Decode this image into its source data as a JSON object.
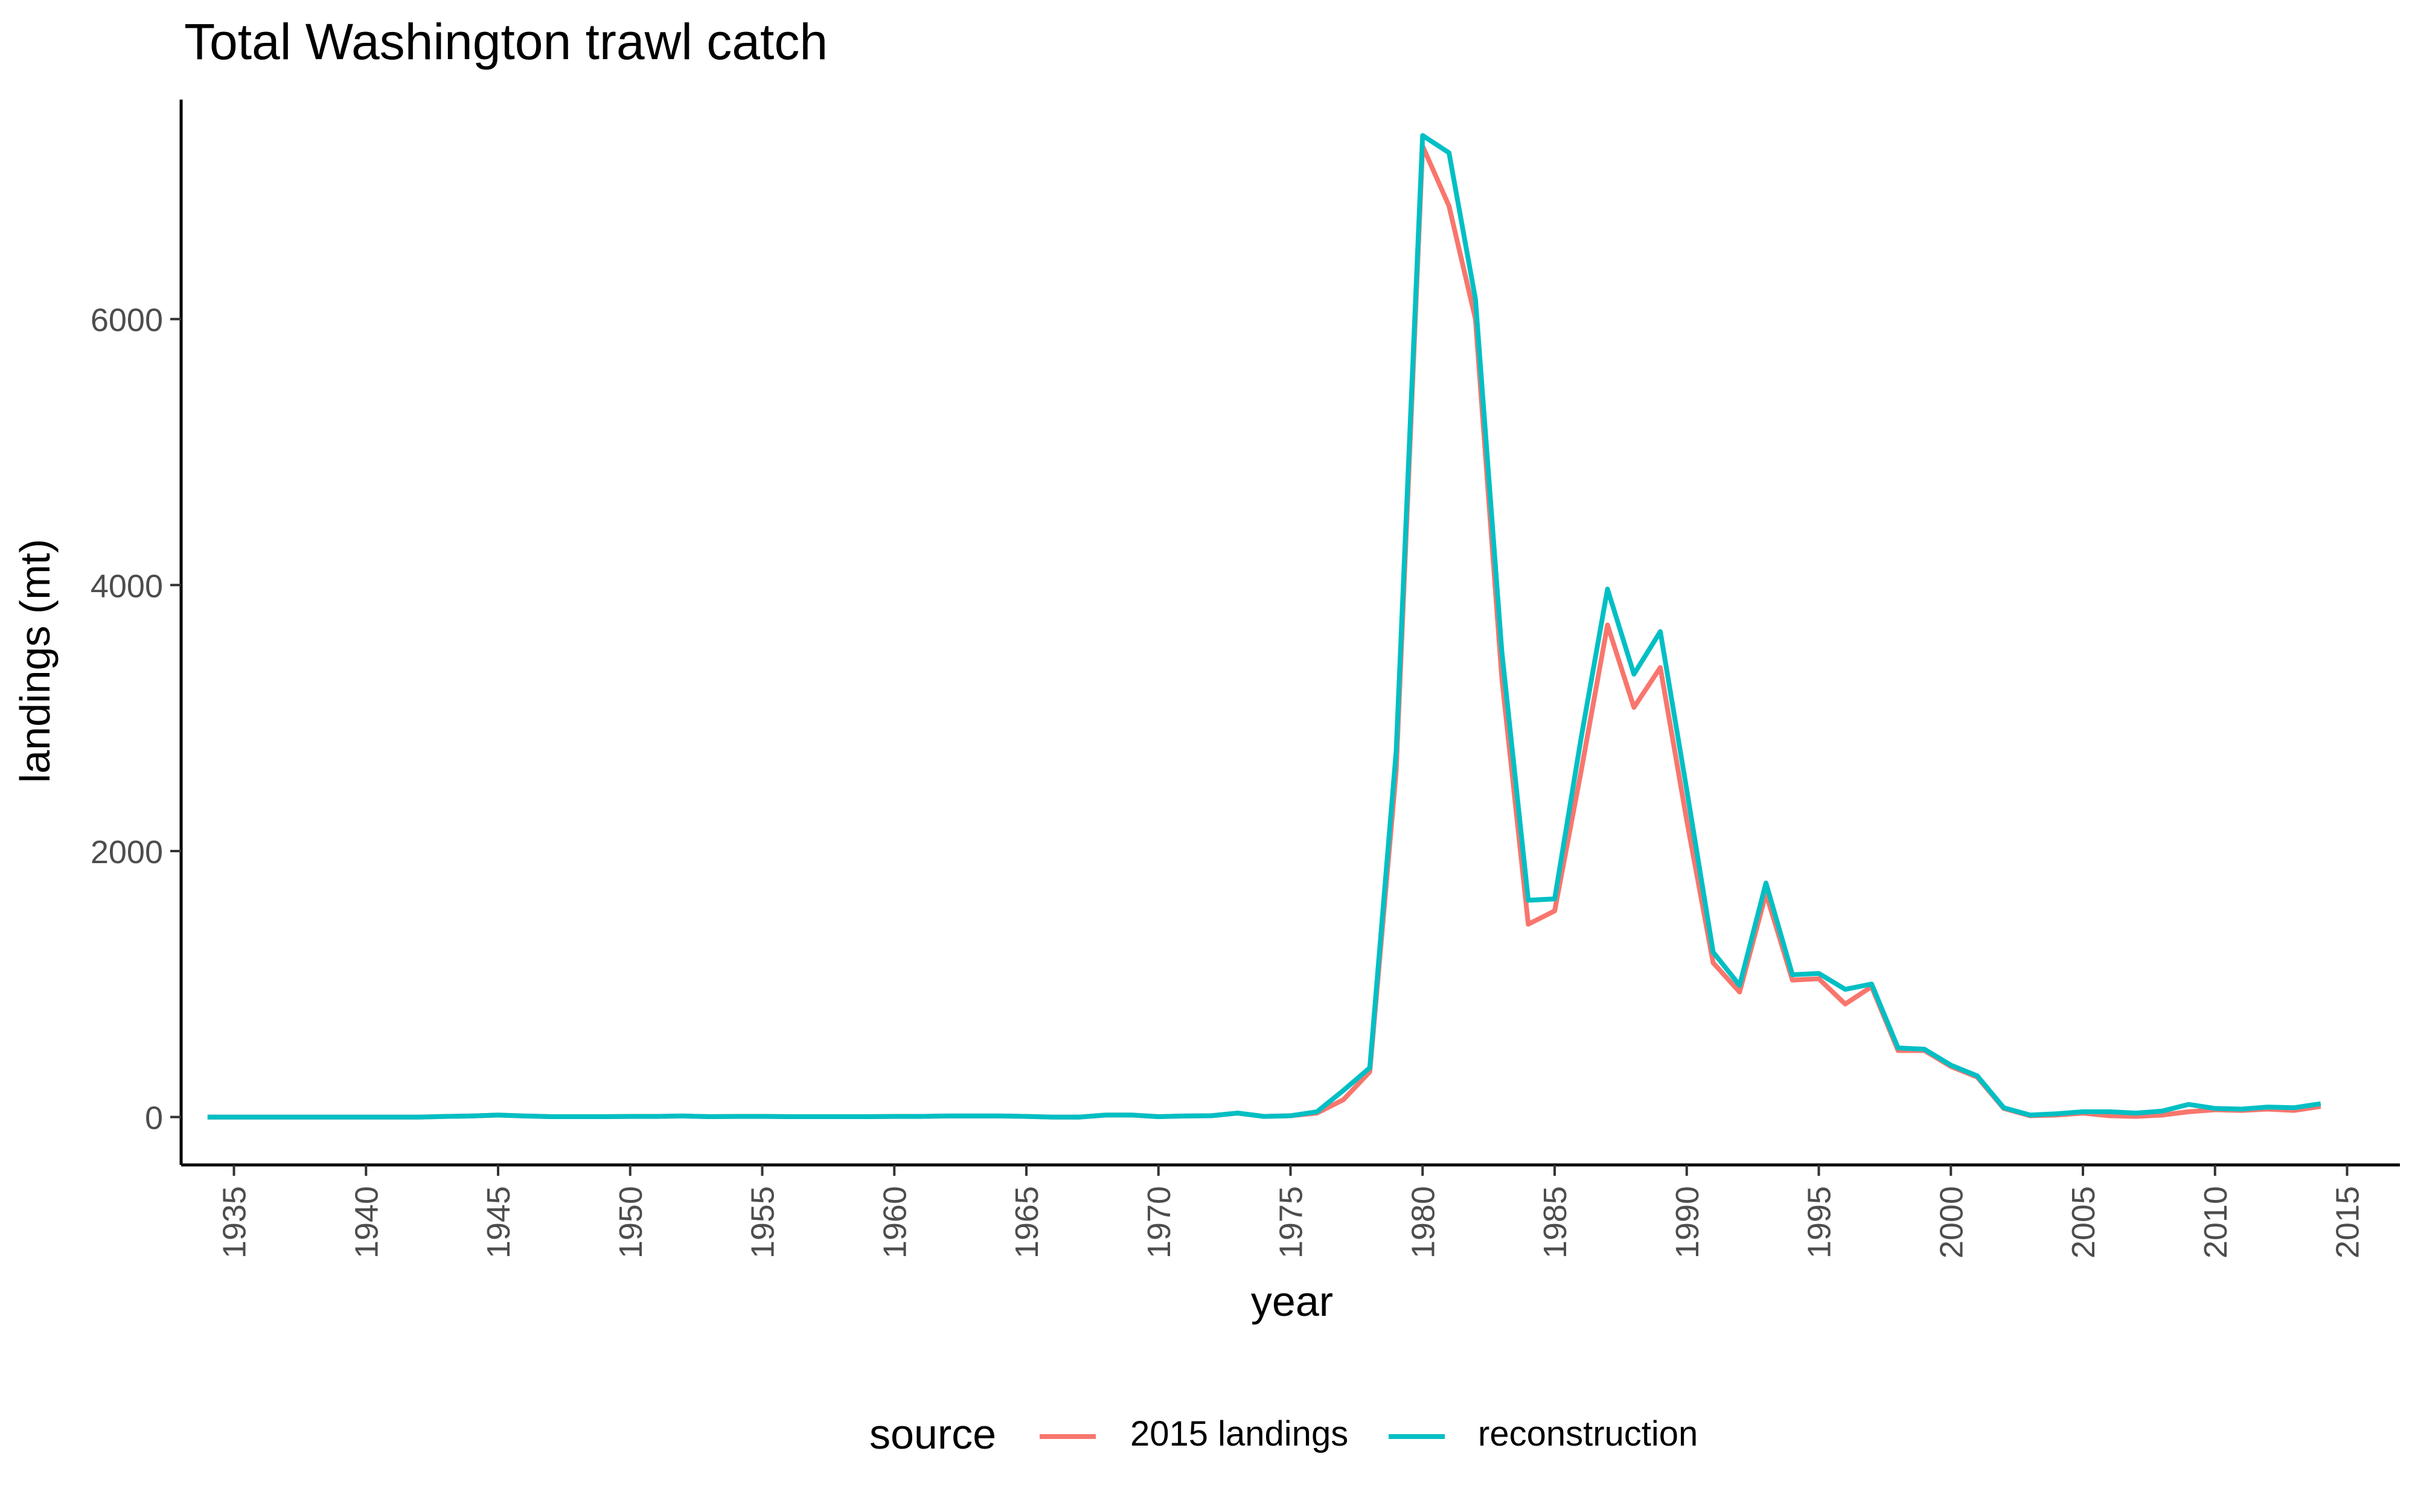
{
  "chart_data": {
    "type": "line",
    "title": "Total Washington trawl catch",
    "xlabel": "year",
    "ylabel": "landings (mt)",
    "xlim": [
      1933,
      2017
    ],
    "ylim": [
      -360,
      7650
    ],
    "x_ticks": [
      1935,
      1940,
      1945,
      1950,
      1955,
      1960,
      1965,
      1970,
      1975,
      1980,
      1985,
      1990,
      1995,
      2000,
      2005,
      2010,
      2015
    ],
    "y_ticks": [
      0,
      2000,
      4000,
      6000
    ],
    "grid": false,
    "legend": {
      "title": "source",
      "position": "bottom"
    },
    "colors": {
      "2015 landings": "#F8766D",
      "reconstruction": "#00BFC4"
    },
    "x": [
      1934,
      1935,
      1936,
      1937,
      1938,
      1939,
      1940,
      1941,
      1942,
      1943,
      1944,
      1945,
      1946,
      1947,
      1948,
      1949,
      1950,
      1951,
      1952,
      1953,
      1954,
      1955,
      1956,
      1957,
      1958,
      1959,
      1960,
      1961,
      1962,
      1963,
      1964,
      1965,
      1966,
      1967,
      1968,
      1969,
      1970,
      1971,
      1972,
      1973,
      1974,
      1975,
      1976,
      1977,
      1978,
      1979,
      1980,
      1981,
      1982,
      1983,
      1984,
      1985,
      1986,
      1987,
      1988,
      1989,
      1990,
      1991,
      1992,
      1993,
      1994,
      1995,
      1996,
      1997,
      1998,
      1999,
      2000,
      2001,
      2002,
      2003,
      2004,
      2005,
      2006,
      2007,
      2008,
      2009,
      2010,
      2011,
      2012,
      2013,
      2014
    ],
    "series": [
      {
        "name": "2015 landings",
        "values": [
          0,
          0,
          0,
          0,
          0,
          0,
          0,
          0,
          0,
          5,
          8,
          15,
          8,
          3,
          3,
          3,
          5,
          5,
          8,
          3,
          5,
          5,
          3,
          3,
          3,
          3,
          5,
          5,
          8,
          8,
          8,
          5,
          0,
          0,
          15,
          15,
          3,
          8,
          10,
          30,
          5,
          10,
          30,
          130,
          340,
          2600,
          7300,
          6850,
          6000,
          3300,
          1450,
          1550,
          2600,
          3700,
          3080,
          3380,
          2230,
          1160,
          940,
          1680,
          1030,
          1040,
          850,
          980,
          500,
          500,
          380,
          300,
          65,
          10,
          15,
          30,
          10,
          5,
          15,
          40,
          55,
          50,
          60,
          50,
          80
        ]
      },
      {
        "name": "reconstruction",
        "values": [
          0,
          0,
          0,
          0,
          0,
          0,
          0,
          0,
          0,
          5,
          8,
          15,
          8,
          3,
          3,
          3,
          5,
          5,
          8,
          3,
          5,
          5,
          3,
          3,
          3,
          3,
          5,
          5,
          8,
          8,
          8,
          5,
          0,
          0,
          15,
          15,
          3,
          8,
          10,
          30,
          5,
          10,
          40,
          200,
          370,
          2750,
          7380,
          7250,
          6150,
          3500,
          1630,
          1640,
          2850,
          3970,
          3330,
          3650,
          2460,
          1240,
          990,
          1760,
          1070,
          1080,
          960,
          1000,
          520,
          510,
          390,
          310,
          70,
          15,
          25,
          40,
          40,
          30,
          45,
          95,
          65,
          60,
          75,
          70,
          100
        ]
      }
    ]
  }
}
